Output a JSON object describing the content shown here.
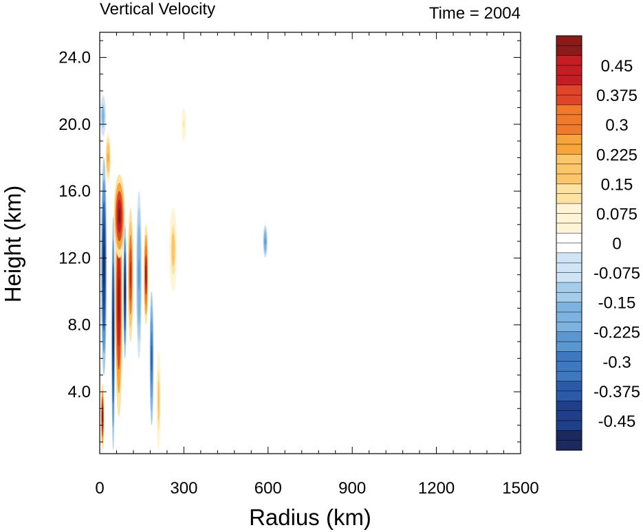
{
  "chart_data": {
    "type": "heatmap",
    "title": "Vertical Velocity",
    "subtitle": "Time = 2004",
    "xlabel": "Radius (km)",
    "ylabel": "Height (km)",
    "xlim": [
      0,
      1500
    ],
    "ylim": [
      0.3,
      25.5
    ],
    "x_ticks": [
      0,
      300,
      600,
      900,
      1200,
      1500
    ],
    "x_tick_labels": [
      "0",
      "300",
      "600",
      "900",
      "1200",
      "1500"
    ],
    "y_ticks": [
      4,
      8,
      12,
      16,
      20,
      24
    ],
    "y_tick_labels": [
      "4.0",
      "8.0",
      "12.0",
      "16.0",
      "20.0",
      "24.0"
    ],
    "grid": false,
    "colorbar": {
      "min": -0.525,
      "max": 0.525,
      "step": 0.025,
      "labels": [
        "0.45",
        "0.375",
        "0.3",
        "0.225",
        "0.15",
        "0.075",
        "0",
        "-0.075",
        "-0.15",
        "-0.225",
        "-0.3",
        "-0.375",
        "-0.45"
      ],
      "label_values": [
        0.45,
        0.375,
        0.3,
        0.225,
        0.15,
        0.075,
        0,
        -0.075,
        -0.15,
        -0.225,
        -0.3,
        -0.375,
        -0.45
      ],
      "colors": [
        "#1b2a5e",
        "#1f3f8a",
        "#2a5aa8",
        "#3d78c0",
        "#5a97d1",
        "#7db3e0",
        "#a5cdeb",
        "#cfe4f4",
        "#ffffff",
        "#fff5d6",
        "#fde2a1",
        "#fbc56a",
        "#f7a43b",
        "#ef7a2a",
        "#e0452a",
        "#c41e24",
        "#8b1a1a"
      ]
    },
    "features": [
      {
        "r": 15,
        "z": 11.5,
        "dr": 10,
        "dz": 6.5,
        "w": -0.55
      },
      {
        "r": 12,
        "z": 20.5,
        "dr": 10,
        "dz": 1.2,
        "w": -0.2
      },
      {
        "r": 30,
        "z": 18.0,
        "dr": 10,
        "dz": 1.5,
        "w": 0.25
      },
      {
        "r": 10,
        "z": 2.5,
        "dr": 6,
        "dz": 2.0,
        "w": 0.55
      },
      {
        "r": 48,
        "z": 7.5,
        "dr": 6,
        "dz": 7.0,
        "w": -0.55
      },
      {
        "r": 68,
        "z": 9.5,
        "dr": 14,
        "dz": 7.0,
        "w": 0.55
      },
      {
        "r": 70,
        "z": 14.5,
        "dr": 20,
        "dz": 2.5,
        "w": 0.55
      },
      {
        "r": 90,
        "z": 10.0,
        "dr": 6,
        "dz": 4.0,
        "w": -0.55
      },
      {
        "r": 110,
        "z": 11.0,
        "dr": 10,
        "dz": 4.0,
        "w": 0.45
      },
      {
        "r": 140,
        "z": 11.0,
        "dr": 10,
        "dz": 5.0,
        "w": -0.25
      },
      {
        "r": 165,
        "z": 11.0,
        "dr": 8,
        "dz": 3.0,
        "w": 0.5
      },
      {
        "r": 185,
        "z": 6.0,
        "dr": 7,
        "dz": 4.0,
        "w": -0.4
      },
      {
        "r": 210,
        "z": 3.5,
        "dr": 8,
        "dz": 3.0,
        "w": 0.2
      },
      {
        "r": 262,
        "z": 12.5,
        "dr": 14,
        "dz": 2.5,
        "w": 0.2
      },
      {
        "r": 300,
        "z": 20.0,
        "dr": 10,
        "dz": 1.2,
        "w": 0.1
      },
      {
        "r": 590,
        "z": 13.0,
        "dr": 8,
        "dz": 1.0,
        "w": -0.25
      }
    ]
  }
}
